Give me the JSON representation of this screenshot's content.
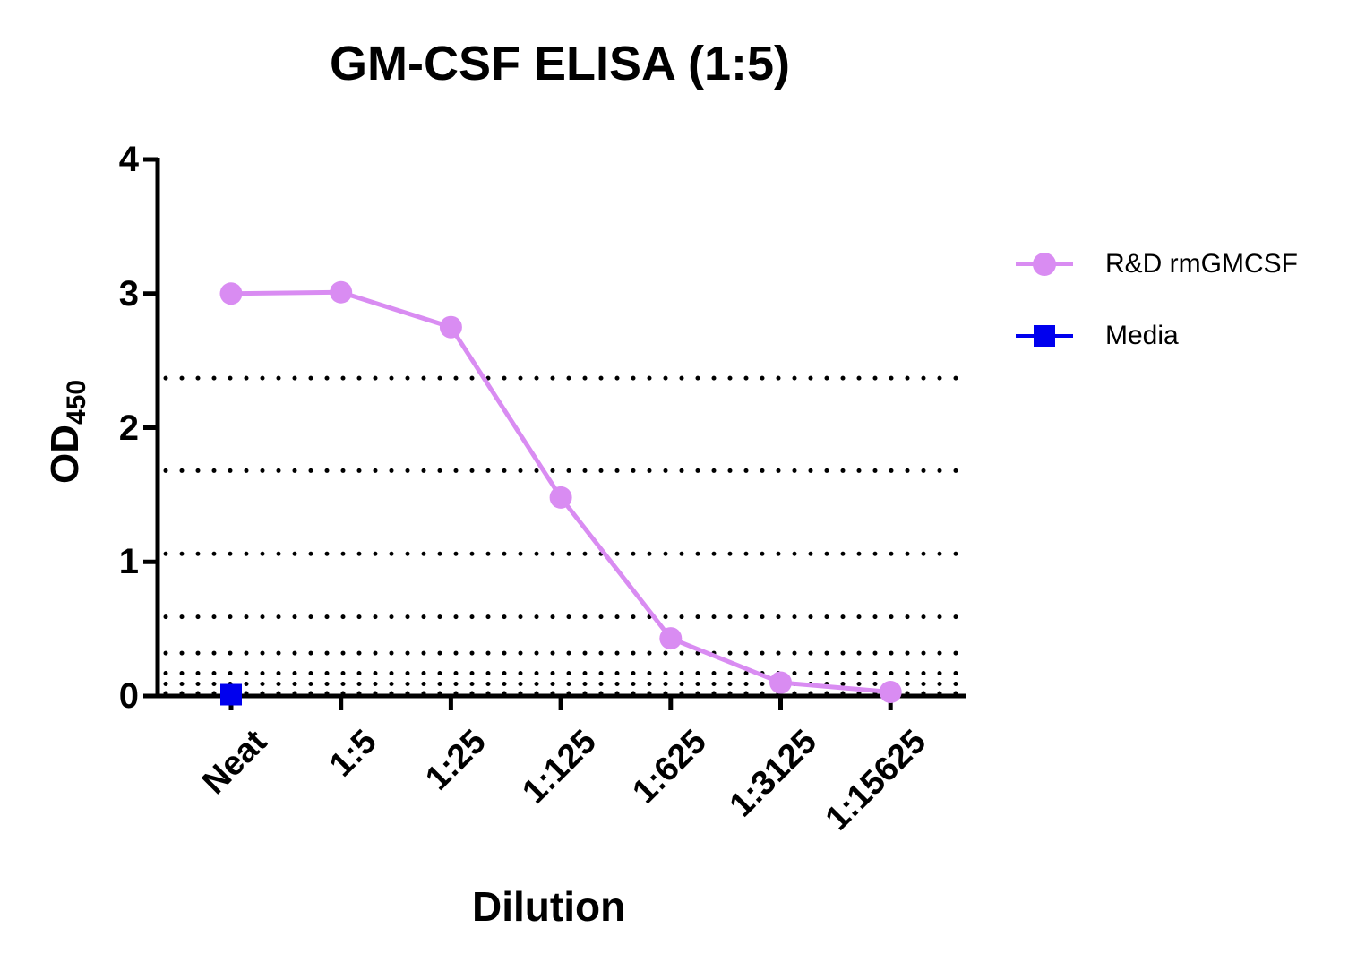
{
  "chart_data": {
    "type": "line",
    "title": "GM-CSF ELISA (1:5)",
    "xlabel": "Dilution",
    "ylabel": "OD",
    "ylabel_subscript": "450",
    "categories": [
      "Neat",
      "1:5",
      "1:25",
      "1:125",
      "1:625",
      "1:3125",
      "1:15625"
    ],
    "ylim": [
      0,
      4
    ],
    "yticks": [
      "0",
      "1",
      "2",
      "3",
      "4"
    ],
    "grid": false,
    "legend_position": "right",
    "series": [
      {
        "name": "R&D rmGMCSF",
        "color": "#d98cf2",
        "marker": "circle",
        "values": [
          3.0,
          3.01,
          2.75,
          1.48,
          0.43,
          0.1,
          0.03
        ]
      },
      {
        "name": "Media",
        "color": "#0000ee",
        "marker": "square",
        "values": [
          0.01,
          null,
          null,
          null,
          null,
          null,
          null
        ]
      }
    ],
    "reference_lines": {
      "style": "dotted",
      "color": "#000000",
      "y_values": [
        2.37,
        1.68,
        1.06,
        0.59,
        0.32,
        0.17,
        0.09,
        0.02
      ]
    }
  },
  "legend": {
    "items": [
      {
        "label": "R&D rmGMCSF",
        "color": "#d98cf2",
        "marker": "circle"
      },
      {
        "label": "Media",
        "color": "#0000ee",
        "marker": "square"
      }
    ]
  }
}
